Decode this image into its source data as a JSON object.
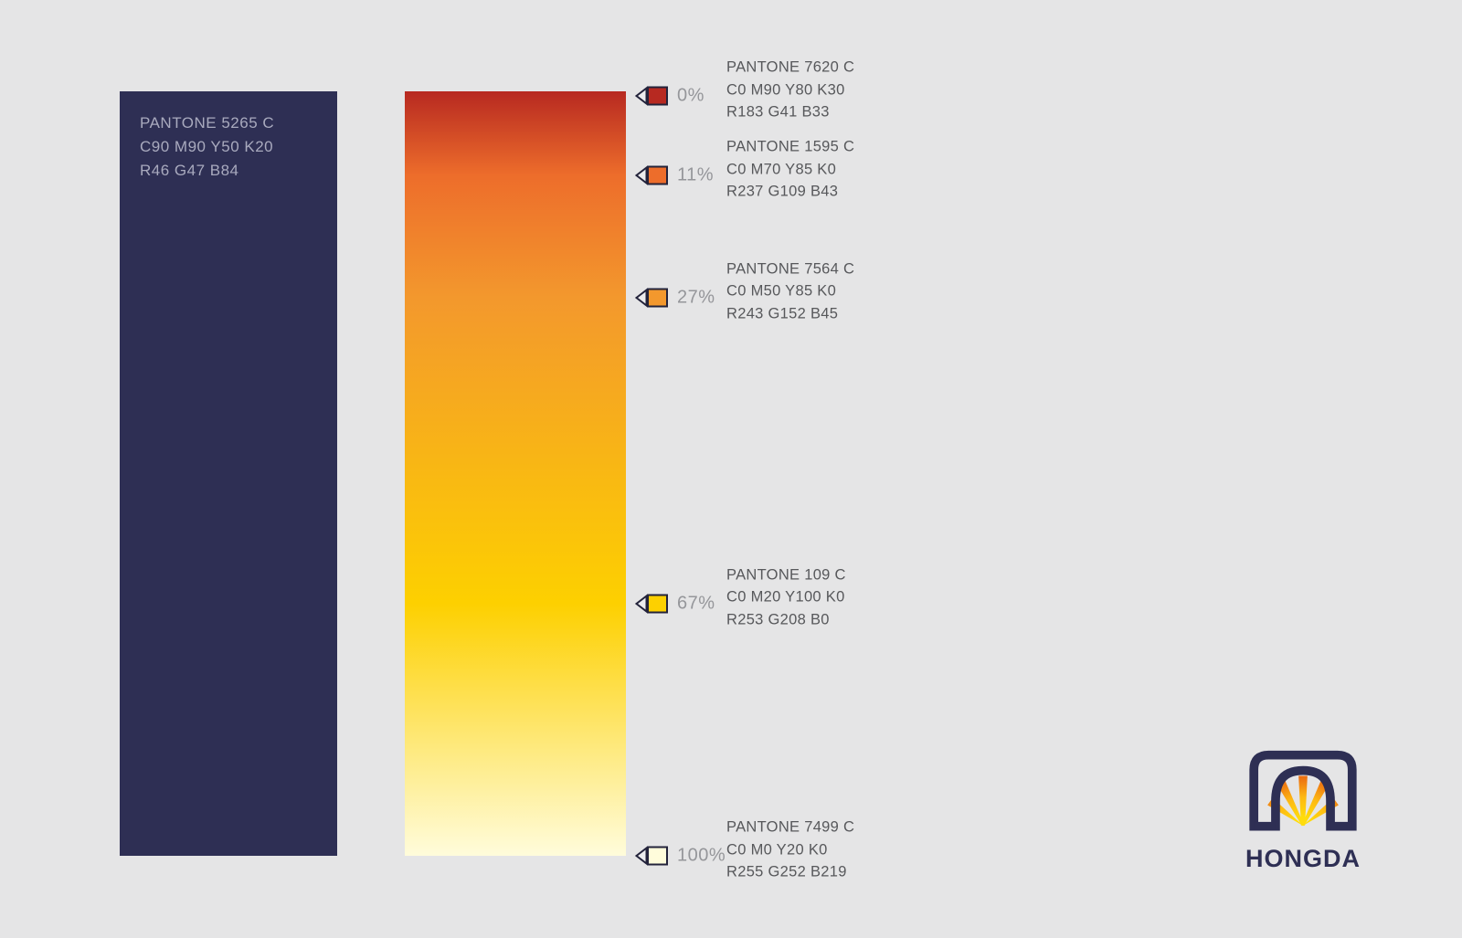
{
  "page": {
    "background": "#e5e5e6"
  },
  "base_swatch": {
    "pantone": "PANTONE 5265 C",
    "cmyk": "C90 M90 Y50 K20",
    "rgb": "R46 G47 B84",
    "hex": "#2e2f54",
    "text_color": "#a9aabe"
  },
  "gradient_bar": {
    "direction": "top-to-bottom",
    "stops": [
      {
        "percent": "0%",
        "pct": 0,
        "pantone": "PANTONE 7620 C",
        "cmyk": "C0 M90 Y80 K30",
        "rgb": "R183 G41 B33",
        "hex": "#b72921"
      },
      {
        "percent": "11%",
        "pct": 11,
        "pantone": "PANTONE 1595 C",
        "cmyk": "C0 M70 Y85 K0",
        "rgb": "R237 G109 B43",
        "hex": "#ed6d2b"
      },
      {
        "percent": "27%",
        "pct": 27,
        "pantone": "PANTONE 7564 C",
        "cmyk": "C0 M50 Y85 K0",
        "rgb": "R243 G152 B45",
        "hex": "#f3982d"
      },
      {
        "percent": "67%",
        "pct": 67,
        "pantone": "PANTONE 109 C",
        "cmyk": "C0 M20 Y100 K0",
        "rgb": "R253 G208 B0",
        "hex": "#fdd000"
      },
      {
        "percent": "100%",
        "pct": 100,
        "pantone": "PANTONE 7499 C",
        "cmyk": "C0 M0 Y20 K0",
        "rgb": "R255 G252 B219",
        "hex": "#fffcdb"
      }
    ],
    "marker_outline": "#23233b",
    "marker_triangle_fill": "#ececee"
  },
  "logo": {
    "wordmark": "HONGDA",
    "navy": "#2e2f54",
    "ray_gradient": {
      "inner": "#ffdc0c",
      "mid": "#fdb813",
      "outer": "#e65c0f"
    }
  }
}
